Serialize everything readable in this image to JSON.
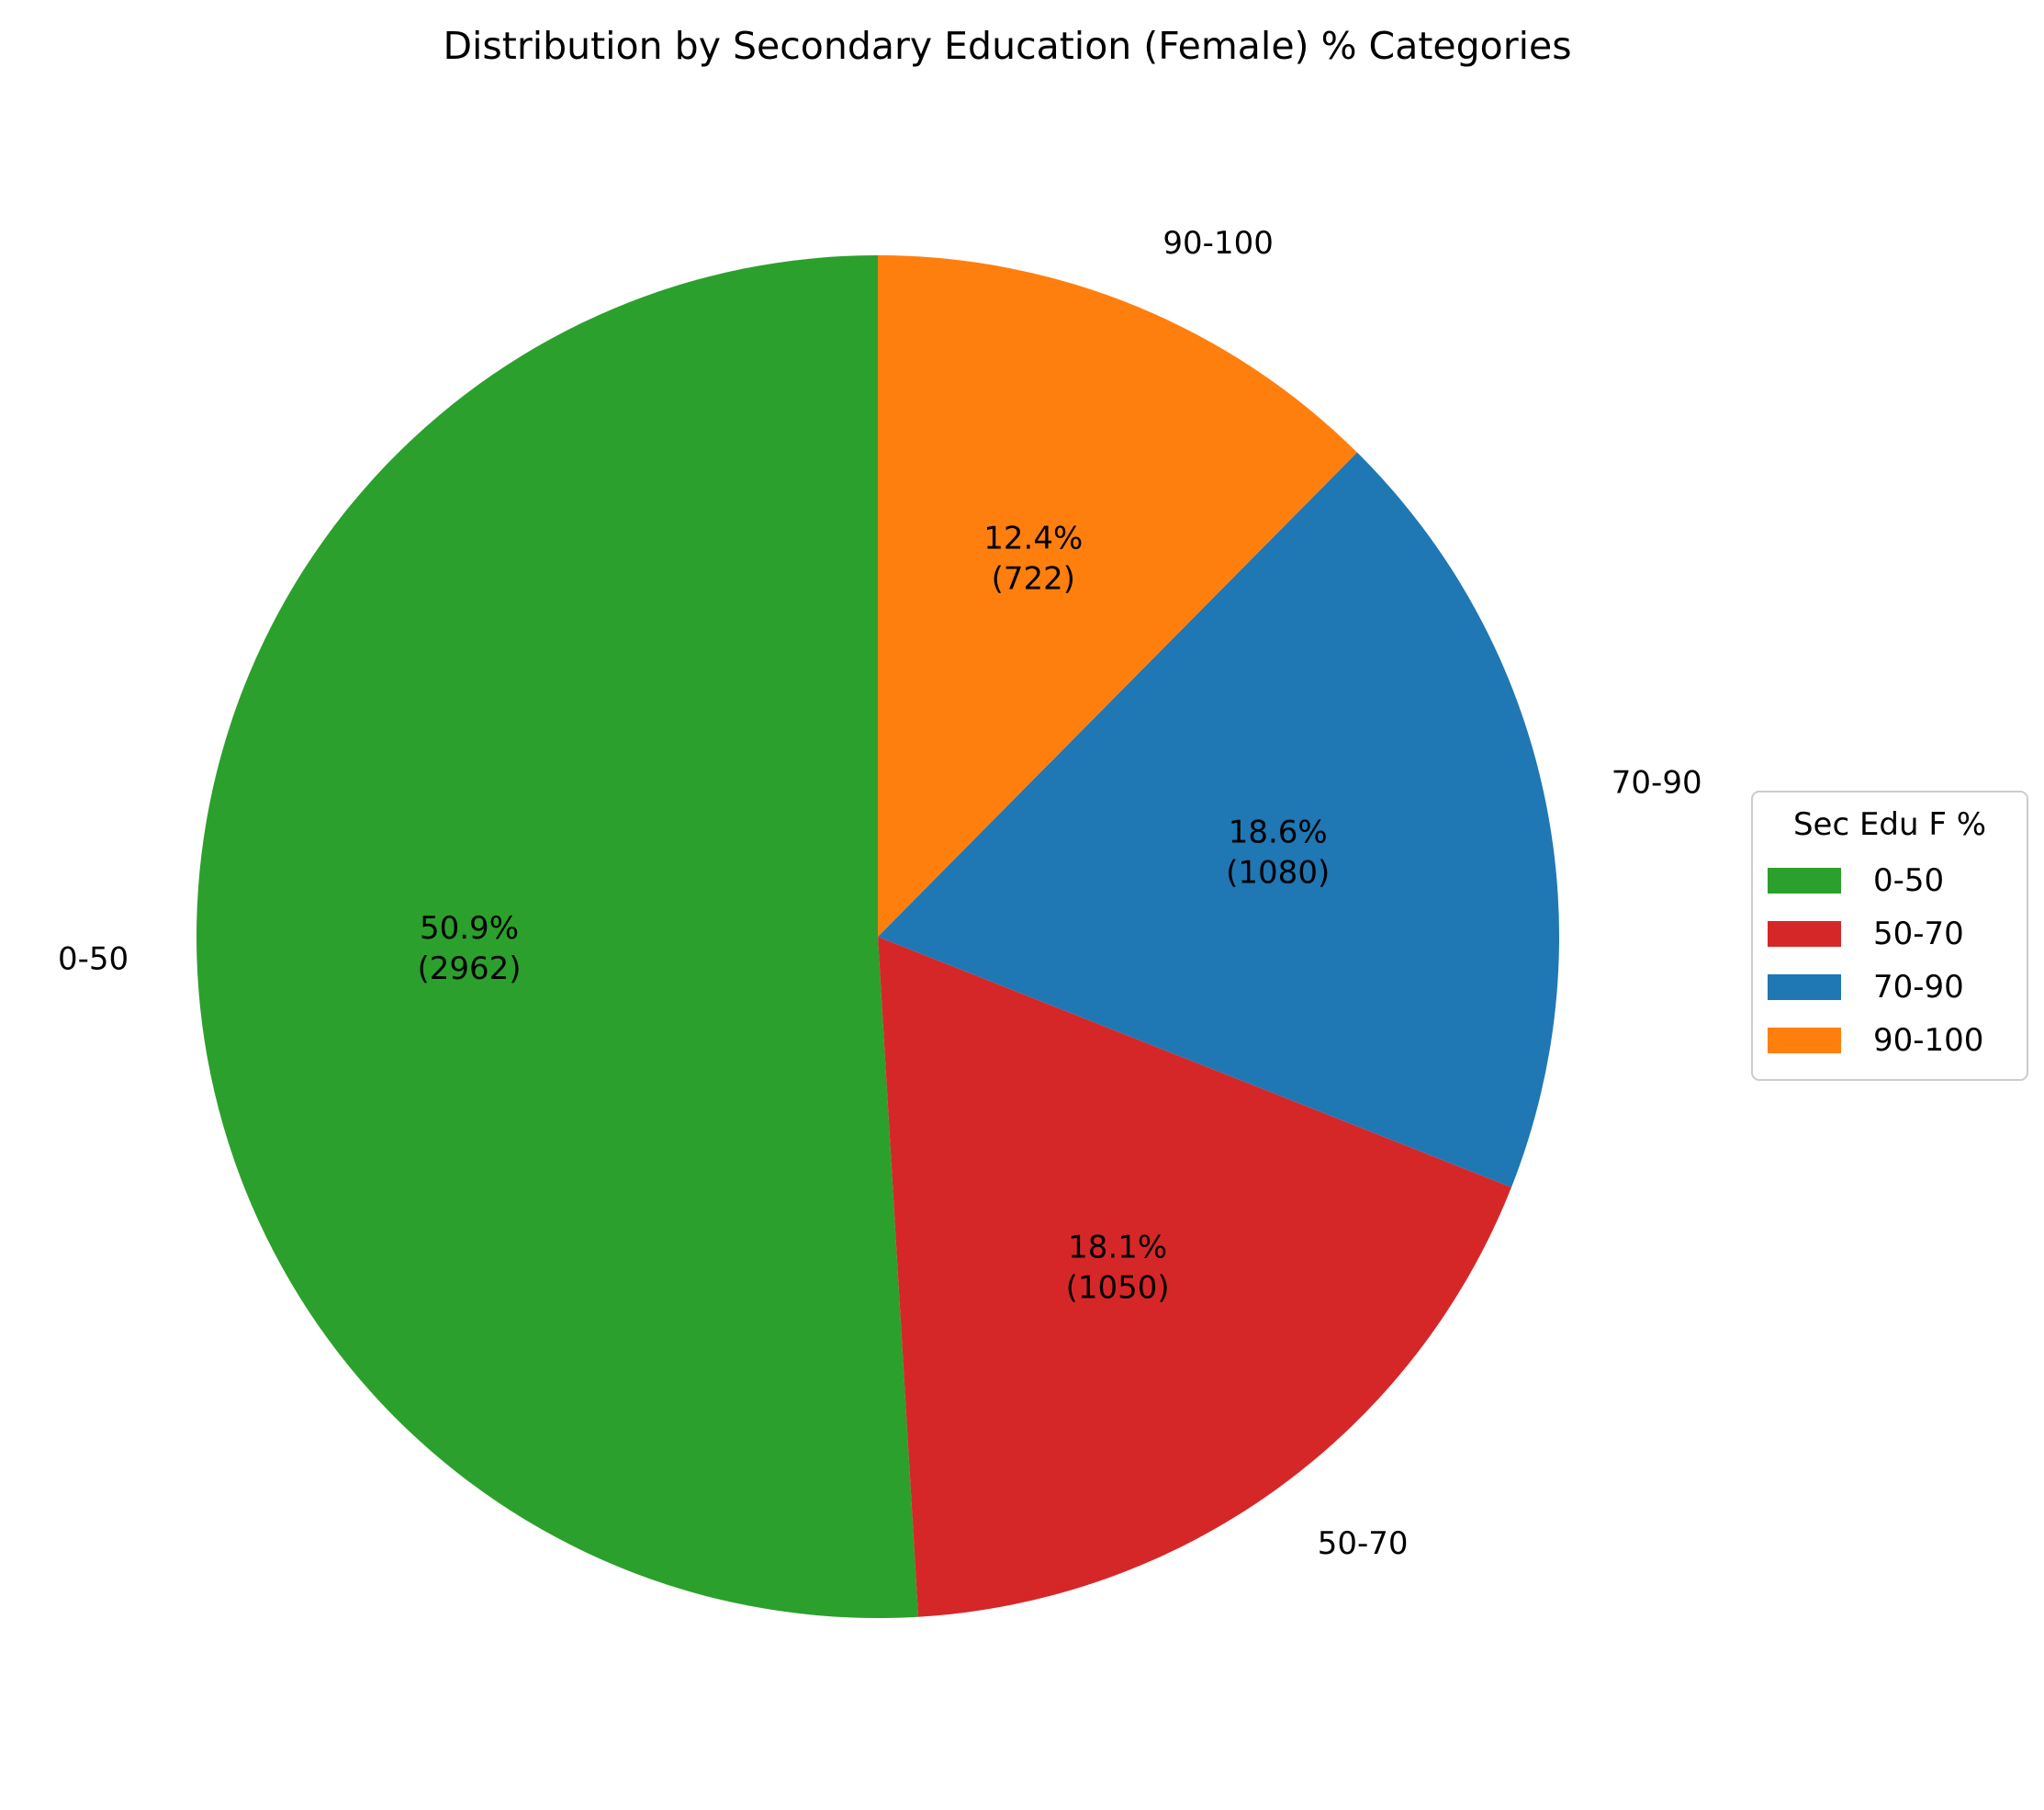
{
  "chart_data": {
    "type": "pie",
    "title": "Distribution by Secondary Education (Female) % Categories",
    "categories": [
      "0-50",
      "50-70",
      "70-90",
      "90-100"
    ],
    "values": [
      2962,
      1050,
      1080,
      722
    ],
    "percent_labels": [
      "50.9%",
      "18.1%",
      "18.6%",
      "12.4%"
    ],
    "count_labels": [
      "(2962)",
      "(1050)",
      "(1080)",
      "(722)"
    ],
    "colors": [
      "#2ca02c",
      "#d62728",
      "#1f77b4",
      "#ff7f0e"
    ],
    "start_angle_deg": 90,
    "direction": "counterclockwise",
    "legend": {
      "title": "Sec Edu F %",
      "placement": "right",
      "entries": [
        "0-50",
        "50-70",
        "70-90",
        "90-100"
      ]
    }
  }
}
